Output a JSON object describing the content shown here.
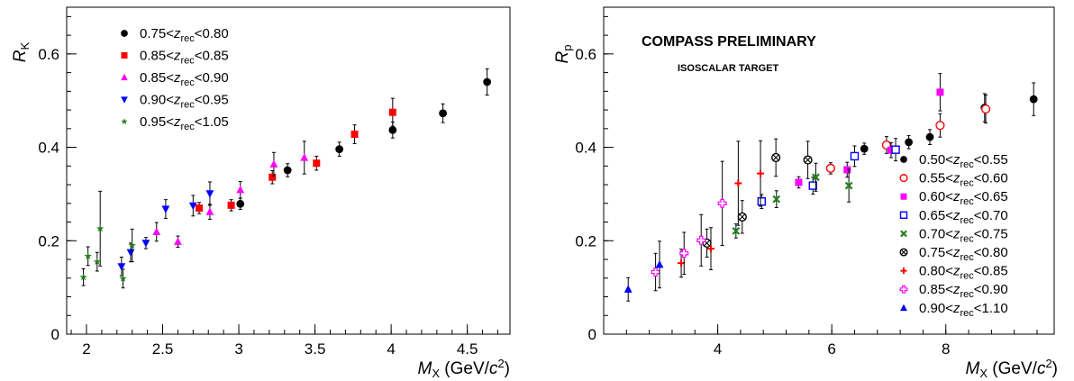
{
  "chart_data": [
    {
      "type": "scatter",
      "ylabel": "R_K",
      "xlabel": "M_X (GeV/c^2)",
      "xlim": [
        1.87,
        4.78
      ],
      "ylim": [
        0,
        0.7
      ],
      "xticks": [
        2,
        2.5,
        3,
        3.5,
        4,
        4.5
      ],
      "xtick_labels": [
        "2",
        "2.5",
        "3",
        "3.5",
        "4",
        "4.5"
      ],
      "yticks": [
        0,
        0.2,
        0.4,
        0.6
      ],
      "ytick_labels": [
        "0",
        "0.2",
        "0.4",
        "0.6"
      ],
      "grid": false,
      "legend_position": "top-left",
      "series": [
        {
          "name": "0.75<z_rec<0.80",
          "color": "#000000",
          "marker": "circle",
          "points": [
            [
              3.01,
              0.279,
              0.012
            ],
            [
              3.32,
              0.351,
              0.014
            ],
            [
              3.66,
              0.396,
              0.015
            ],
            [
              4.01,
              0.437,
              0.017
            ],
            [
              4.34,
              0.473,
              0.02
            ],
            [
              4.63,
              0.54,
              0.028
            ]
          ]
        },
        {
          "name": "0.85<z_rec<0.85",
          "color": "#ff0000",
          "marker": "square",
          "points": [
            [
              2.74,
              0.27,
              0.012
            ],
            [
              2.95,
              0.276,
              0.012
            ],
            [
              3.22,
              0.336,
              0.014
            ],
            [
              3.51,
              0.366,
              0.015
            ],
            [
              3.76,
              0.428,
              0.02
            ],
            [
              4.01,
              0.475,
              0.03
            ]
          ]
        },
        {
          "name": "0.85<z_rec<0.90",
          "color": "#ff00ff",
          "marker": "triangle-up",
          "points": [
            [
              2.46,
              0.219,
              0.02
            ],
            [
              2.6,
              0.198,
              0.012
            ],
            [
              2.81,
              0.262,
              0.016
            ],
            [
              3.01,
              0.309,
              0.018
            ],
            [
              3.23,
              0.364,
              0.025
            ],
            [
              3.43,
              0.378,
              0.035
            ]
          ]
        },
        {
          "name": "0.90<z_rec<0.95",
          "color": "#0000ff",
          "marker": "triangle-down",
          "points": [
            [
              2.23,
              0.145,
              0.02
            ],
            [
              2.29,
              0.175,
              0.02
            ],
            [
              2.39,
              0.195,
              0.012
            ],
            [
              2.52,
              0.268,
              0.02
            ],
            [
              2.7,
              0.275,
              0.022
            ],
            [
              2.81,
              0.301,
              0.025
            ]
          ]
        },
        {
          "name": "0.95<z_rec<1.05",
          "color": "#267f1e",
          "marker": "star",
          "points": [
            [
              1.98,
              0.122,
              0.018
            ],
            [
              2.01,
              0.167,
              0.02
            ],
            [
              2.07,
              0.155,
              0.02
            ],
            [
              2.09,
              0.226,
              0.08
            ],
            [
              2.24,
              0.119,
              0.02
            ],
            [
              2.3,
              0.19,
              0.035
            ]
          ]
        }
      ]
    },
    {
      "type": "scatter",
      "ylabel": "R_p",
      "xlabel": "M_X (GeV/c^2)",
      "annotations": [
        "COMPASS PRELIMINARY",
        "ISOSCALAR TARGET"
      ],
      "xlim": [
        2.0,
        9.9
      ],
      "ylim": [
        0,
        0.7
      ],
      "xticks": [
        4,
        6,
        8
      ],
      "xtick_labels": [
        "4",
        "6",
        "8"
      ],
      "yticks": [
        0,
        0.2,
        0.4,
        0.6
      ],
      "ytick_labels": [
        "0",
        "0.2",
        "0.4",
        "0.6"
      ],
      "grid": false,
      "legend_position": "bottom-right",
      "series": [
        {
          "name": "0.50<z_rec<0.55",
          "color": "#000000",
          "marker": "circle",
          "points": [
            [
              6.57,
              0.397,
              0.012
            ],
            [
              7.35,
              0.411,
              0.014
            ],
            [
              7.72,
              0.422,
              0.016
            ],
            [
              8.68,
              0.485,
              0.03
            ],
            [
              9.54,
              0.503,
              0.035
            ]
          ]
        },
        {
          "name": "0.55<z_rec<0.60",
          "color": "#ff0000",
          "marker": "circle-open",
          "points": [
            [
              5.98,
              0.355,
              0.012
            ],
            [
              6.96,
              0.405,
              0.018
            ],
            [
              7.9,
              0.447,
              0.025
            ],
            [
              8.7,
              0.482,
              0.03
            ]
          ]
        },
        {
          "name": "0.60<z_rec<0.65",
          "color": "#ff00ff",
          "marker": "square",
          "points": [
            [
              5.42,
              0.325,
              0.012
            ],
            [
              6.27,
              0.352,
              0.016
            ],
            [
              7.04,
              0.394,
              0.016
            ],
            [
              7.9,
              0.518,
              0.04
            ]
          ]
        },
        {
          "name": "0.65<z_rec<0.70",
          "color": "#0000ff",
          "marker": "square-open",
          "points": [
            [
              4.77,
              0.284,
              0.015
            ],
            [
              5.67,
              0.318,
              0.018
            ],
            [
              6.4,
              0.381,
              0.022
            ],
            [
              7.12,
              0.395,
              0.024
            ]
          ]
        },
        {
          "name": "0.70<z_rec<0.75",
          "color": "#267f1e",
          "marker": "x",
          "points": [
            [
              4.32,
              0.221,
              0.015
            ],
            [
              5.03,
              0.289,
              0.018
            ],
            [
              5.72,
              0.336,
              0.03
            ],
            [
              6.3,
              0.318,
              0.035
            ]
          ]
        },
        {
          "name": "0.75<z_rec<0.80",
          "color": "#000000",
          "marker": "circle-x",
          "points": [
            [
              3.81,
              0.195,
              0.03
            ],
            [
              4.43,
              0.251,
              0.035
            ],
            [
              5.02,
              0.378,
              0.04
            ],
            [
              5.58,
              0.373,
              0.04
            ]
          ]
        },
        {
          "name": "0.80<z_rec<0.85",
          "color": "#ff0000",
          "marker": "plus",
          "points": [
            [
              3.36,
              0.152,
              0.03
            ],
            [
              3.88,
              0.183,
              0.045
            ],
            [
              4.36,
              0.323,
              0.09
            ],
            [
              4.75,
              0.344,
              0.07
            ]
          ]
        },
        {
          "name": "0.85<z_rec<0.90",
          "color": "#ff00ff",
          "marker": "cross-open",
          "points": [
            [
              2.91,
              0.133,
              0.04
            ],
            [
              3.41,
              0.173,
              0.045
            ],
            [
              3.71,
              0.201,
              0.055
            ],
            [
              4.08,
              0.28,
              0.09
            ]
          ]
        },
        {
          "name": "0.90<z_rec<1.10",
          "color": "#0000ff",
          "marker": "triangle-up",
          "points": [
            [
              2.43,
              0.096,
              0.025
            ],
            [
              2.98,
              0.149,
              0.05
            ]
          ]
        }
      ]
    }
  ]
}
